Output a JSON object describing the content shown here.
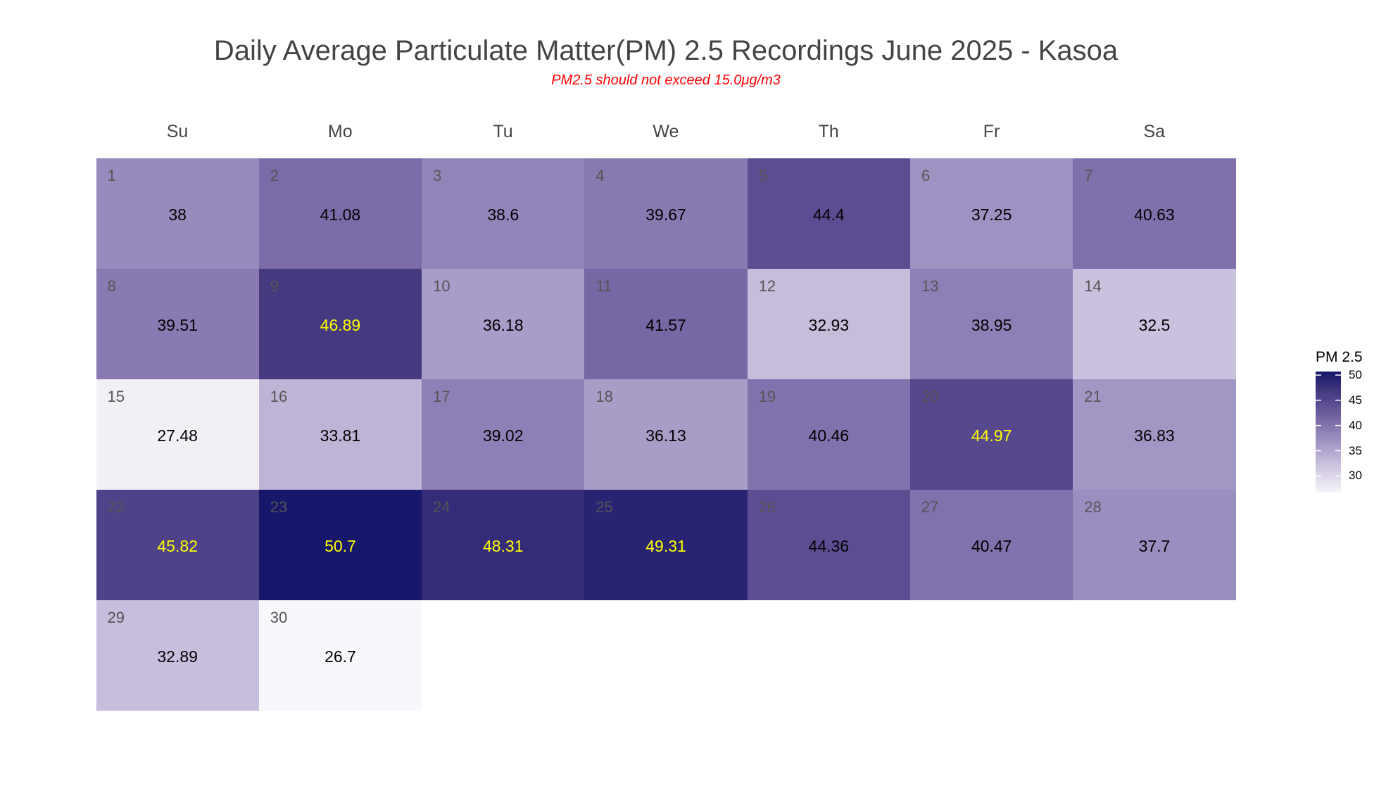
{
  "chart_data": {
    "type": "heatmap",
    "title": "Daily Average Particulate Matter(PM) 2.5 Recordings June 2025 -  Kasoa",
    "subtitle": "PM2.5 should not exceed 15.0μg/m3",
    "weekdays": [
      "Su",
      "Mo",
      "Tu",
      "We",
      "Th",
      "Fr",
      "Sa"
    ],
    "month_start_weekday": 0,
    "days": [
      1,
      2,
      3,
      4,
      5,
      6,
      7,
      8,
      9,
      10,
      11,
      12,
      13,
      14,
      15,
      16,
      17,
      18,
      19,
      20,
      21,
      22,
      23,
      24,
      25,
      26,
      27,
      28,
      29,
      30
    ],
    "values": [
      38,
      41.08,
      38.6,
      39.67,
      44.4,
      37.25,
      40.63,
      39.51,
      46.89,
      36.18,
      41.57,
      32.93,
      38.95,
      32.5,
      27.48,
      33.81,
      39.02,
      36.13,
      40.46,
      44.97,
      36.83,
      45.82,
      50.7,
      48.31,
      49.31,
      44.36,
      40.47,
      37.7,
      32.89,
      26.7
    ],
    "legend": {
      "title": "PM 2.5",
      "ticks": [
        50,
        45,
        40,
        35,
        30
      ],
      "range": [
        26.7,
        50.7
      ],
      "placement": "right"
    },
    "colors": {
      "low": "#f8f7fb",
      "high": "#17176c",
      "highlight_text": "#ffff00",
      "text": "#000000"
    }
  }
}
